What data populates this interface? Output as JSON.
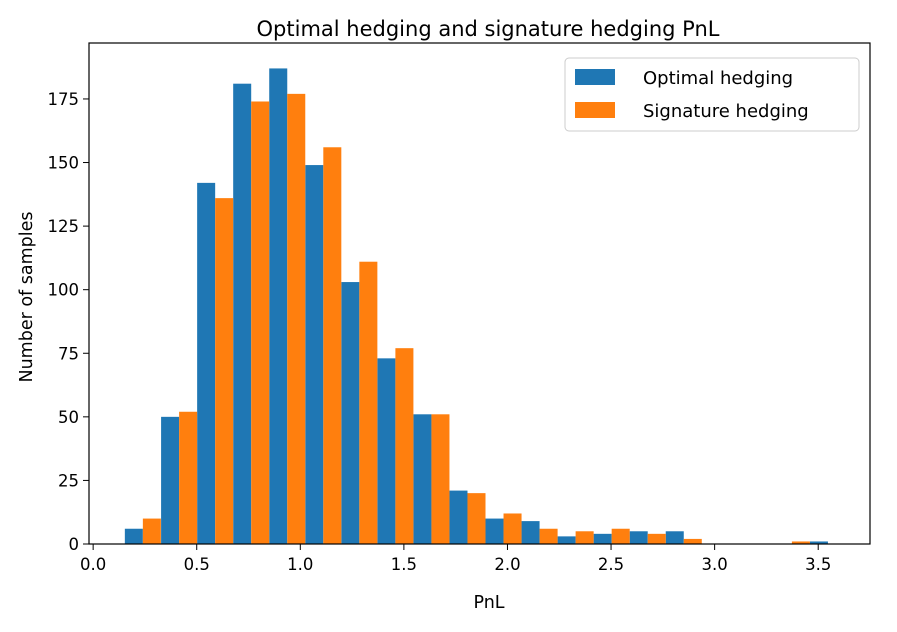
{
  "chart_data": {
    "type": "bar",
    "title": "Optimal hedging and signature hedging PnL",
    "xlabel": "PnL",
    "ylabel": "Number of samples",
    "xlim": [
      -0.02,
      3.75
    ],
    "ylim": [
      0,
      197
    ],
    "xticks": [
      "0.0",
      "0.5",
      "1.0",
      "1.5",
      "2.0",
      "2.5",
      "3.0",
      "3.5"
    ],
    "yticks": [
      "0",
      "25",
      "50",
      "75",
      "100",
      "125",
      "150",
      "175"
    ],
    "bin_width": 0.174,
    "bin_centers": [
      0.24,
      0.415,
      0.589,
      0.763,
      0.937,
      1.111,
      1.285,
      1.459,
      1.633,
      1.807,
      1.981,
      2.155,
      2.329,
      2.503,
      2.677,
      2.851,
      3.025,
      3.199,
      3.373,
      3.547
    ],
    "series": [
      {
        "name": "Optimal hedging",
        "color": "#1f77b4",
        "values": [
          6,
          50,
          142,
          181,
          187,
          149,
          103,
          73,
          51,
          21,
          10,
          9,
          3,
          4,
          5,
          5,
          0,
          0,
          0,
          1
        ]
      },
      {
        "name": "Signature hedging",
        "color": "#ff7f0e",
        "values": [
          10,
          52,
          136,
          174,
          177,
          156,
          111,
          77,
          51,
          20,
          12,
          6,
          5,
          6,
          4,
          2,
          0,
          0,
          1,
          0
        ]
      }
    ],
    "grid": false,
    "legend_position": "top-right"
  }
}
